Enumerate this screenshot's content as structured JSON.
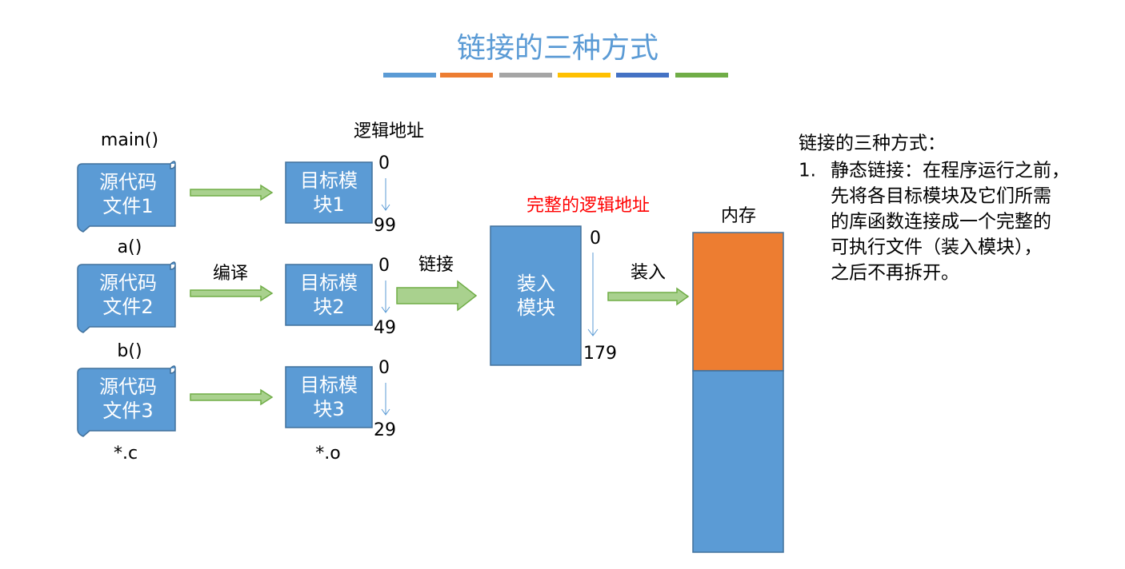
{
  "title": "链接的三种方式",
  "source_files": [
    {
      "call": "main()",
      "label_lines": [
        "源代码",
        "文件1"
      ]
    },
    {
      "call": "a()",
      "label_lines": [
        "源代码",
        "文件2"
      ]
    },
    {
      "call": "b()",
      "label_lines": [
        "源代码",
        "文件3"
      ]
    }
  ],
  "source_ext": "*.c",
  "compile_label": "编译",
  "logical_address_label": "逻辑地址",
  "target_modules": [
    {
      "label_lines": [
        "目标模",
        "块1"
      ],
      "start": "0",
      "end": "99"
    },
    {
      "label_lines": [
        "目标模",
        "块2"
      ],
      "start": "0",
      "end": "49"
    },
    {
      "label_lines": [
        "目标模",
        "块3"
      ],
      "start": "0",
      "end": "29"
    }
  ],
  "object_ext": "*.o",
  "link_label": "链接",
  "load_module": {
    "address_label": "完整的逻辑地址",
    "label_lines": [
      "装入",
      "模块"
    ],
    "start": "0",
    "end": "179"
  },
  "load_label": "装入",
  "memory_label": "内存",
  "notes": {
    "heading": "链接的三种方式：",
    "items": [
      {
        "number": "1.",
        "lines": [
          "静态链接：在程序运行之前，",
          "先将各目标模块及它们所需",
          "的库函数连接成一个完整的",
          "可执行文件（装入模块），",
          "之后不再拆开。"
        ]
      }
    ]
  }
}
